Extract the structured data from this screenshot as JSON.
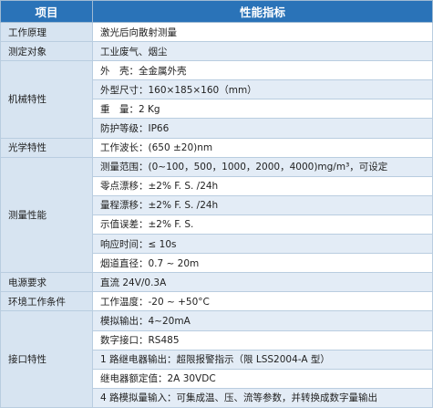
{
  "header": {
    "columns": [
      "项目",
      "性能指标"
    ]
  },
  "rows": [
    {
      "label": "工作原理",
      "items": [
        "激光后向散射测量"
      ]
    },
    {
      "label": "测定对象",
      "items": [
        "工业废气、烟尘"
      ]
    },
    {
      "label": "机械特性",
      "items": [
        "外　壳：全金属外壳",
        "外型尺寸：160×185×160（mm）",
        "重　量：2 Kg",
        "防护等级：IP66"
      ]
    },
    {
      "label": "光学特性",
      "items": [
        "工作波长：(650 ±20)nm"
      ]
    },
    {
      "label": "测量性能",
      "items": [
        "测量范围：(0~100，500，1000，2000，4000)mg/m³，可设定",
        "零点漂移：±2% F. S. /24h",
        "量程漂移：±2% F. S. /24h",
        "示值误差：±2% F. S.",
        "响应时间：≤ 10s",
        "烟道直径：0.7 ~ 20m"
      ]
    },
    {
      "label": "电源要求",
      "items": [
        "直流 24V/0.3A"
      ]
    },
    {
      "label": "环境工作条件",
      "items": [
        "工作温度：-20 ~ +50°C"
      ]
    },
    {
      "label": "接口特性",
      "items": [
        "模拟输出：4~20mA",
        "数字接口：RS485",
        "1 路继电器输出：超限报警指示（限 LSS2004-A 型）",
        "继电器额定值：2A 30VDC",
        "4 路模拟量输入：可集成温、压、流等参数，并转换成数字量输出"
      ]
    }
  ]
}
